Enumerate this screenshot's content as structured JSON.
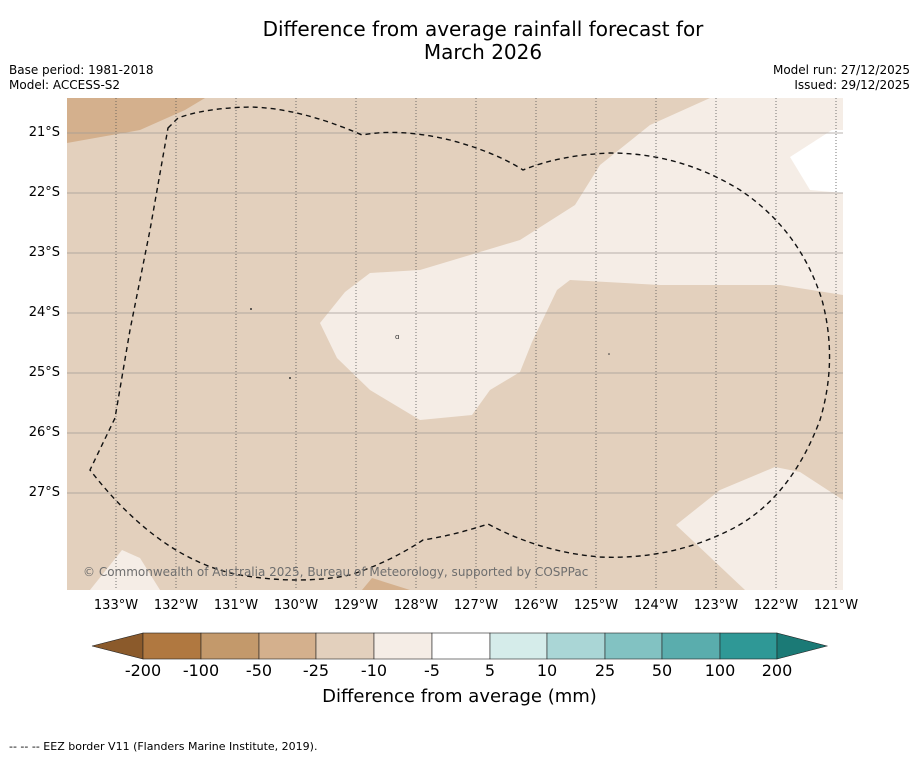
{
  "header": {
    "title_line1": "Difference from average rainfall forecast for",
    "title_line2": "March 2026",
    "base_period": "Base period: 1981-2018",
    "model": "Model: ACCESS-S2",
    "model_run": "Model run: 27/12/2025",
    "issued": "Issued: 29/12/2025"
  },
  "map": {
    "latitude_labels": [
      "21°S",
      "22°S",
      "23°S",
      "24°S",
      "25°S",
      "26°S",
      "27°S"
    ],
    "longitude_labels": [
      "133°W",
      "132°W",
      "131°W",
      "130°W",
      "129°W",
      "128°W",
      "127°W",
      "126°W",
      "125°W",
      "124°W",
      "123°W",
      "122°W",
      "121°W"
    ],
    "copyright": "© Commonwealth of Australia 2025, Bureau of Meteorology, supported by COSPPac",
    "eez_legend": "--  --  -- EEZ border V11 (Flanders Marine Institute, 2019)."
  },
  "colorbar": {
    "ticks": [
      "-200",
      "-100",
      "-50",
      "-25",
      "-10",
      "-5",
      "5",
      "10",
      "25",
      "50",
      "100",
      "200"
    ],
    "title": "Difference from average (mm)",
    "colors": [
      "#8b5a2b",
      "#b07840",
      "#c3996b",
      "#d4b08d",
      "#e3d0bd",
      "#f5ede6",
      "#ffffff",
      "#d5ecea",
      "#aad6d6",
      "#82c2c2",
      "#5aadad",
      "#2f9896",
      "#1b7a76"
    ]
  }
}
